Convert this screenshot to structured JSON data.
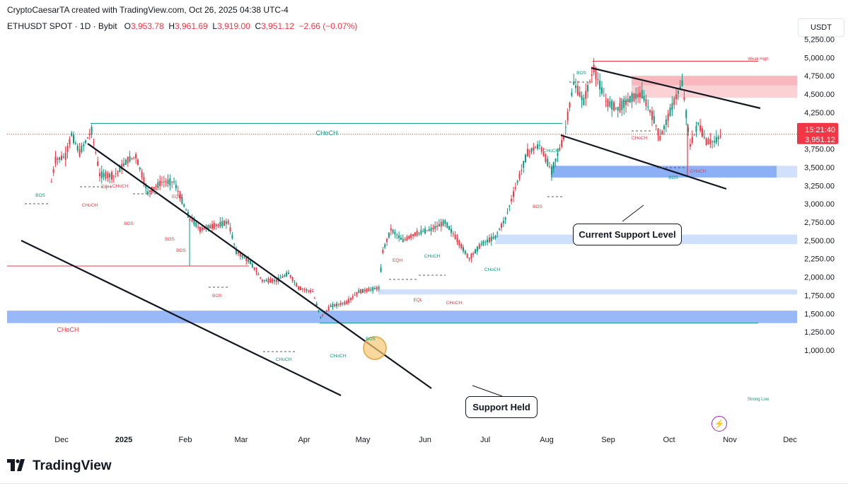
{
  "header": {
    "credit": "CryptoCaesarTA created with TradingView.com, Oct 26, 2025 04:38 UTC-4",
    "symbol": "ETHUSDT SPOT · 1D · Bybit",
    "o_label": "O",
    "o_value": "3,953.78",
    "h_label": "H",
    "h_value": "3,961.69",
    "l_label": "L",
    "l_value": "3,919.00",
    "c_label": "C",
    "c_value": "3,951.12",
    "change": "−2.66 (−0.07%)"
  },
  "currency_button": "USDT",
  "price_axis": {
    "ticks": [
      "5,250.00",
      "5,000.00",
      "4,750.00",
      "4,500.00",
      "4,250.00",
      "4,000.00",
      "3,750.00",
      "3,500.00",
      "3,250.00",
      "3,000.00",
      "2,750.00",
      "2,500.00",
      "2,250.00",
      "2,000.00",
      "1,750.00",
      "1,500.00",
      "1,250.00",
      "1,000.00"
    ],
    "tick_values": [
      5250,
      5000,
      4750,
      4500,
      4250,
      4000,
      3750,
      3500,
      3250,
      3000,
      2750,
      2500,
      2250,
      2000,
      1750,
      1500,
      1250,
      1000
    ],
    "countdown": "15:21:40",
    "last_price": "3,951.12",
    "last_value": 3951.12
  },
  "time_axis": {
    "labels": [
      "Dec",
      "2025",
      "Feb",
      "Mar",
      "Apr",
      "May",
      "Jun",
      "Jul",
      "Aug",
      "Sep",
      "Oct",
      "Nov",
      "Dec"
    ]
  },
  "annotations": {
    "weak_high": "Weak High",
    "strong_low": "Strong Low",
    "choch_big": "CHoCH",
    "choch_left": "CHoCH",
    "small_labels": [
      {
        "t": "BOS",
        "c": "green"
      },
      {
        "t": "EQH",
        "c": "red"
      },
      {
        "t": "CHoCH",
        "c": "red"
      },
      {
        "t": "CHoCH",
        "c": "red"
      },
      {
        "t": "EQH",
        "c": "red"
      },
      {
        "t": "BOS",
        "c": "red"
      },
      {
        "t": "BOS",
        "c": "red"
      },
      {
        "t": "BOS",
        "c": "red"
      },
      {
        "t": "BOS",
        "c": "red"
      },
      {
        "t": "CHoCH",
        "c": "green"
      },
      {
        "t": "BOS",
        "c": "green"
      },
      {
        "t": "EQH",
        "c": "red"
      },
      {
        "t": "CHoCH",
        "c": "green"
      },
      {
        "t": "EQL",
        "c": "red"
      },
      {
        "t": "CHoCH",
        "c": "red"
      },
      {
        "t": "CHoCH",
        "c": "green"
      },
      {
        "t": "CHoCH",
        "c": "green"
      },
      {
        "t": "BOS",
        "c": "green"
      },
      {
        "t": "CHoCH",
        "c": "red"
      },
      {
        "t": "BOS",
        "c": "green"
      },
      {
        "t": "BOS",
        "c": "green"
      },
      {
        "t": "CHoCH",
        "c": "red"
      },
      {
        "t": "BOS",
        "c": "red"
      },
      {
        "t": "CHoCH",
        "c": "green"
      }
    ],
    "current_support": "Current Support Level",
    "support_held": "Support Held"
  },
  "logo": {
    "text": "TradingView",
    "icon": "tradingview-logo-icon"
  },
  "colors": {
    "up": "#089981",
    "down": "#f23645",
    "zone_blue": "#bbd3fb",
    "zone_blue_strong": "#7fa6f5",
    "zone_red": "#f9c9cc",
    "choch_line": "#089981",
    "choch_left_line": "#f23645"
  },
  "chart_data": {
    "type": "candlestick",
    "symbol": "ETHUSDT",
    "interval": "1D",
    "ylim": [
      950,
      5350
    ],
    "x_labels": [
      "Dec",
      "2025",
      "Feb",
      "Mar",
      "Apr",
      "May",
      "Jun",
      "Jul",
      "Aug",
      "Sep",
      "Oct",
      "Nov",
      "Dec"
    ],
    "close_series": [
      {
        "date": "2024-11-26",
        "close": 3300
      },
      {
        "date": "2024-11-28",
        "close": 3600
      },
      {
        "date": "2024-12-03",
        "close": 3650
      },
      {
        "date": "2024-12-06",
        "close": 3950
      },
      {
        "date": "2024-12-10",
        "close": 3700
      },
      {
        "date": "2024-12-16",
        "close": 4000
      },
      {
        "date": "2024-12-20",
        "close": 3400
      },
      {
        "date": "2024-12-27",
        "close": 3380
      },
      {
        "date": "2025-01-03",
        "close": 3600
      },
      {
        "date": "2025-01-07",
        "close": 3650
      },
      {
        "date": "2025-01-13",
        "close": 3150
      },
      {
        "date": "2025-01-20",
        "close": 3300
      },
      {
        "date": "2025-01-26",
        "close": 3300
      },
      {
        "date": "2025-02-02",
        "close": 2850
      },
      {
        "date": "2025-02-08",
        "close": 2650
      },
      {
        "date": "2025-02-15",
        "close": 2700
      },
      {
        "date": "2025-02-22",
        "close": 2750
      },
      {
        "date": "2025-02-26",
        "close": 2350
      },
      {
        "date": "2025-03-05",
        "close": 2200
      },
      {
        "date": "2025-03-11",
        "close": 1950
      },
      {
        "date": "2025-03-18",
        "close": 1950
      },
      {
        "date": "2025-03-24",
        "close": 2050
      },
      {
        "date": "2025-03-29",
        "close": 1850
      },
      {
        "date": "2025-04-05",
        "close": 1800
      },
      {
        "date": "2025-04-09",
        "close": 1450
      },
      {
        "date": "2025-04-14",
        "close": 1600
      },
      {
        "date": "2025-04-22",
        "close": 1650
      },
      {
        "date": "2025-04-28",
        "close": 1800
      },
      {
        "date": "2025-05-08",
        "close": 1850
      },
      {
        "date": "2025-05-10",
        "close": 2350
      },
      {
        "date": "2025-05-14",
        "close": 2650
      },
      {
        "date": "2025-05-20",
        "close": 2500
      },
      {
        "date": "2025-05-27",
        "close": 2600
      },
      {
        "date": "2025-06-03",
        "close": 2650
      },
      {
        "date": "2025-06-10",
        "close": 2750
      },
      {
        "date": "2025-06-15",
        "close": 2550
      },
      {
        "date": "2025-06-22",
        "close": 2250
      },
      {
        "date": "2025-06-28",
        "close": 2450
      },
      {
        "date": "2025-07-05",
        "close": 2550
      },
      {
        "date": "2025-07-10",
        "close": 2800
      },
      {
        "date": "2025-07-16",
        "close": 3300
      },
      {
        "date": "2025-07-21",
        "close": 3700
      },
      {
        "date": "2025-07-27",
        "close": 3800
      },
      {
        "date": "2025-08-02",
        "close": 3450
      },
      {
        "date": "2025-08-08",
        "close": 3900
      },
      {
        "date": "2025-08-13",
        "close": 4650
      },
      {
        "date": "2025-08-18",
        "close": 4400
      },
      {
        "date": "2025-08-23",
        "close": 4850
      },
      {
        "date": "2025-08-29",
        "close": 4400
      },
      {
        "date": "2025-09-04",
        "close": 4300
      },
      {
        "date": "2025-09-11",
        "close": 4450
      },
      {
        "date": "2025-09-16",
        "close": 4500
      },
      {
        "date": "2025-09-22",
        "close": 4150
      },
      {
        "date": "2025-09-25",
        "close": 3900
      },
      {
        "date": "2025-10-02",
        "close": 4400
      },
      {
        "date": "2025-10-06",
        "close": 4650
      },
      {
        "date": "2025-10-10",
        "close": 3800
      },
      {
        "date": "2025-10-14",
        "close": 4100
      },
      {
        "date": "2025-10-18",
        "close": 3850
      },
      {
        "date": "2025-10-22",
        "close": 3850
      },
      {
        "date": "2025-10-26",
        "close": 3951.12
      }
    ],
    "zones": [
      {
        "name": "Current Support Level",
        "from": 3360,
        "to": 3520,
        "color": "blue"
      },
      {
        "name": "Support",
        "from": 2450,
        "to": 2580,
        "color": "blue-light"
      },
      {
        "name": "Support",
        "from": 1760,
        "to": 1830,
        "color": "blue-light"
      },
      {
        "name": "Support Held",
        "from": 1370,
        "to": 1540,
        "color": "blue"
      },
      {
        "name": "Resistance",
        "from": 4450,
        "to": 4750,
        "color": "red"
      }
    ],
    "levels": [
      {
        "name": "Weak High",
        "value": 4950
      },
      {
        "name": "Strong Low",
        "value": 1370
      },
      {
        "name": "CHoCH",
        "value": 4100
      },
      {
        "name": "CHoCH",
        "value": 2150
      }
    ]
  }
}
